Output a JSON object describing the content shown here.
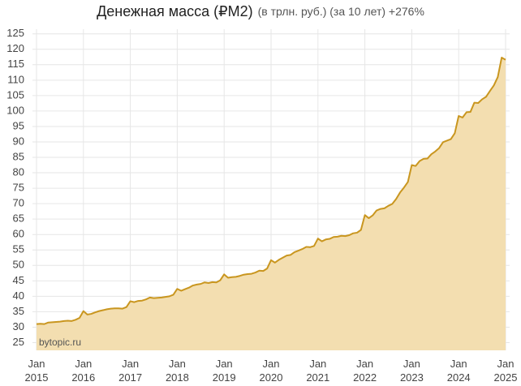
{
  "chart_data": {
    "type": "area",
    "title": "Денежная масса (₽M2)",
    "subtitle": "(в трлн. руб.) (за 10 лет) +276%",
    "annotation": "bytopic.ru",
    "line_color": "#c9961f",
    "fill_color": "#f3deb0",
    "grid": true,
    "xlim": [
      "2015-01",
      "2025-01"
    ],
    "ylim": [
      22.5,
      126.5
    ],
    "yticks": [
      25,
      30,
      35,
      40,
      45,
      50,
      55,
      60,
      65,
      70,
      75,
      80,
      85,
      90,
      95,
      100,
      105,
      110,
      115,
      120,
      125
    ],
    "xticks": [
      {
        "value": "2015-01",
        "label": "Jan 2015"
      },
      {
        "value": "2016-01",
        "label": "Jan 2016"
      },
      {
        "value": "2017-01",
        "label": "Jan 2017"
      },
      {
        "value": "2018-01",
        "label": "Jan 2018"
      },
      {
        "value": "2019-01",
        "label": "Jan 2019"
      },
      {
        "value": "2020-01",
        "label": "Jan 2020"
      },
      {
        "value": "2021-01",
        "label": "Jan 2021"
      },
      {
        "value": "2022-01",
        "label": "Jan 2022"
      },
      {
        "value": "2023-01",
        "label": "Jan 2023"
      },
      {
        "value": "2024-01",
        "label": "Jan 2024"
      },
      {
        "value": "2025-01",
        "label": "Jan 2025"
      }
    ],
    "x": [
      "2015-01",
      "2015-02",
      "2015-03",
      "2015-04",
      "2015-05",
      "2015-06",
      "2015-07",
      "2015-08",
      "2015-09",
      "2015-10",
      "2015-11",
      "2015-12",
      "2016-01",
      "2016-02",
      "2016-03",
      "2016-04",
      "2016-05",
      "2016-06",
      "2016-07",
      "2016-08",
      "2016-09",
      "2016-10",
      "2016-11",
      "2016-12",
      "2017-01",
      "2017-02",
      "2017-03",
      "2017-04",
      "2017-05",
      "2017-06",
      "2017-07",
      "2017-08",
      "2017-09",
      "2017-10",
      "2017-11",
      "2017-12",
      "2018-01",
      "2018-02",
      "2018-03",
      "2018-04",
      "2018-05",
      "2018-06",
      "2018-07",
      "2018-08",
      "2018-09",
      "2018-10",
      "2018-11",
      "2018-12",
      "2019-01",
      "2019-02",
      "2019-03",
      "2019-04",
      "2019-05",
      "2019-06",
      "2019-07",
      "2019-08",
      "2019-09",
      "2019-10",
      "2019-11",
      "2019-12",
      "2020-01",
      "2020-02",
      "2020-03",
      "2020-04",
      "2020-05",
      "2020-06",
      "2020-07",
      "2020-08",
      "2020-09",
      "2020-10",
      "2020-11",
      "2020-12",
      "2021-01",
      "2021-02",
      "2021-03",
      "2021-04",
      "2021-05",
      "2021-06",
      "2021-07",
      "2021-08",
      "2021-09",
      "2021-10",
      "2021-11",
      "2021-12",
      "2022-01",
      "2022-02",
      "2022-03",
      "2022-04",
      "2022-05",
      "2022-06",
      "2022-07",
      "2022-08",
      "2022-09",
      "2022-10",
      "2022-11",
      "2022-12",
      "2023-01",
      "2023-02",
      "2023-03",
      "2023-04",
      "2023-05",
      "2023-06",
      "2023-07",
      "2023-08",
      "2023-09",
      "2023-10",
      "2023-11",
      "2023-12",
      "2024-01",
      "2024-02",
      "2024-03",
      "2024-04",
      "2024-05",
      "2024-06",
      "2024-07",
      "2024-08",
      "2024-09",
      "2024-10",
      "2024-11",
      "2024-12",
      "2025-01"
    ],
    "values": [
      31.0,
      31.1,
      31.0,
      31.5,
      31.6,
      31.7,
      31.8,
      32.0,
      32.1,
      32.0,
      32.4,
      33.0,
      35.2,
      34.1,
      34.3,
      34.8,
      35.2,
      35.5,
      35.8,
      36.0,
      36.1,
      36.1,
      36.0,
      36.5,
      38.4,
      38.1,
      38.5,
      38.6,
      39.0,
      39.6,
      39.4,
      39.5,
      39.6,
      39.8,
      40.0,
      40.5,
      42.4,
      41.8,
      42.3,
      42.8,
      43.5,
      43.8,
      44.0,
      44.5,
      44.3,
      44.6,
      44.5,
      45.2,
      47.1,
      46.0,
      46.2,
      46.3,
      46.6,
      47.0,
      47.2,
      47.3,
      47.7,
      48.3,
      48.2,
      49.0,
      51.7,
      50.9,
      51.8,
      52.5,
      53.2,
      53.4,
      54.3,
      54.8,
      55.3,
      56.0,
      55.9,
      56.3,
      58.7,
      57.8,
      58.4,
      58.6,
      59.2,
      59.3,
      59.6,
      59.5,
      59.8,
      60.4,
      60.6,
      61.5,
      66.3,
      65.3,
      66.2,
      67.8,
      68.3,
      68.5,
      69.3,
      69.9,
      71.5,
      73.6,
      75.2,
      77.0,
      82.5,
      82.2,
      83.8,
      84.5,
      84.6,
      86.0,
      86.9,
      88.0,
      89.9,
      90.4,
      90.9,
      92.8,
      98.4,
      97.9,
      99.6,
      99.7,
      102.7,
      102.6,
      103.8,
      104.6,
      106.5,
      108.3,
      111.0,
      117.3,
      116.6
    ]
  }
}
